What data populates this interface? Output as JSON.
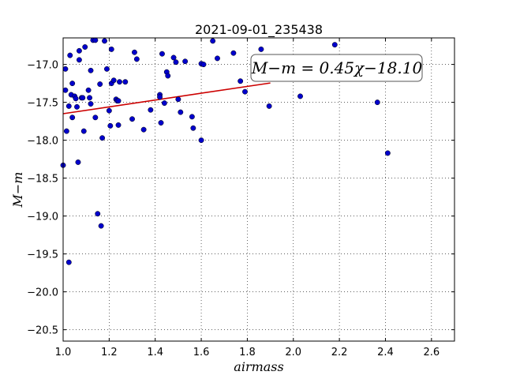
{
  "chart_data": {
    "type": "scatter",
    "title": "2021-09-01_235438",
    "xlabel": "airmass",
    "ylabel": "M−m",
    "xlim": [
      1.0,
      2.7
    ],
    "ylim": [
      -20.65,
      -16.65
    ],
    "x_ticks": [
      1.0,
      1.2,
      1.4,
      1.6,
      1.8,
      2.0,
      2.2,
      2.4,
      2.6
    ],
    "x_tick_labels": [
      "1.0",
      "1.2",
      "1.4",
      "1.6",
      "1.8",
      "2.0",
      "2.2",
      "2.4",
      "2.6"
    ],
    "y_ticks": [
      -17.0,
      -17.5,
      -18.0,
      -18.5,
      -19.0,
      -19.5,
      -20.0,
      -20.5
    ],
    "y_tick_labels": [
      "−17.0",
      "−17.5",
      "−18.0",
      "−18.5",
      "−19.0",
      "−19.5",
      "−20.0",
      "−20.5"
    ],
    "grid": true,
    "annotation": "M−m = 0.45χ−18.10",
    "fit": {
      "slope": 0.45,
      "intercept": -18.1,
      "x_range": [
        1.0,
        1.9
      ],
      "color": "#cc0000"
    },
    "point_color": "#0000cc",
    "points": [
      [
        1.0,
        -18.33
      ],
      [
        1.01,
        -17.34
      ],
      [
        1.01,
        -17.06
      ],
      [
        1.015,
        -17.88
      ],
      [
        1.025,
        -17.55
      ],
      [
        1.025,
        -19.61
      ],
      [
        1.03,
        -16.88
      ],
      [
        1.035,
        -17.4
      ],
      [
        1.04,
        -17.7
      ],
      [
        1.04,
        -17.25
      ],
      [
        1.05,
        -17.42
      ],
      [
        1.055,
        -17.45
      ],
      [
        1.06,
        -17.56
      ],
      [
        1.065,
        -18.29
      ],
      [
        1.07,
        -16.82
      ],
      [
        1.07,
        -16.94
      ],
      [
        1.08,
        -17.44
      ],
      [
        1.085,
        -17.44
      ],
      [
        1.09,
        -17.88
      ],
      [
        1.095,
        -16.77
      ],
      [
        1.11,
        -17.34
      ],
      [
        1.115,
        -17.44
      ],
      [
        1.12,
        -17.08
      ],
      [
        1.12,
        -17.52
      ],
      [
        1.13,
        -16.68
      ],
      [
        1.14,
        -16.68
      ],
      [
        1.14,
        -17.7
      ],
      [
        1.15,
        -18.97
      ],
      [
        1.16,
        -17.26
      ],
      [
        1.165,
        -19.13
      ],
      [
        1.17,
        -17.97
      ],
      [
        1.18,
        -16.69
      ],
      [
        1.19,
        -17.06
      ],
      [
        1.2,
        -17.61
      ],
      [
        1.205,
        -17.81
      ],
      [
        1.21,
        -16.8
      ],
      [
        1.21,
        -17.25
      ],
      [
        1.22,
        -17.21
      ],
      [
        1.23,
        -17.46
      ],
      [
        1.235,
        -17.48
      ],
      [
        1.24,
        -17.8
      ],
      [
        1.24,
        -17.48
      ],
      [
        1.245,
        -17.23
      ],
      [
        1.27,
        -17.23
      ],
      [
        1.3,
        -17.72
      ],
      [
        1.31,
        -16.84
      ],
      [
        1.32,
        -16.93
      ],
      [
        1.35,
        -17.86
      ],
      [
        1.38,
        -17.6
      ],
      [
        1.42,
        -17.4
      ],
      [
        1.42,
        -17.43
      ],
      [
        1.425,
        -17.77
      ],
      [
        1.43,
        -16.86
      ],
      [
        1.44,
        -17.51
      ],
      [
        1.45,
        -17.1
      ],
      [
        1.455,
        -17.15
      ],
      [
        1.48,
        -16.91
      ],
      [
        1.49,
        -16.97
      ],
      [
        1.5,
        -17.46
      ],
      [
        1.51,
        -17.63
      ],
      [
        1.53,
        -16.96
      ],
      [
        1.56,
        -17.69
      ],
      [
        1.565,
        -17.84
      ],
      [
        1.6,
        -16.99
      ],
      [
        1.6,
        -18.0
      ],
      [
        1.61,
        -17.0
      ],
      [
        1.65,
        -16.69
      ],
      [
        1.67,
        -16.92
      ],
      [
        1.74,
        -16.85
      ],
      [
        1.77,
        -17.22
      ],
      [
        1.79,
        -17.36
      ],
      [
        1.86,
        -16.8
      ],
      [
        1.895,
        -17.55
      ],
      [
        2.03,
        -17.42
      ],
      [
        2.18,
        -16.74
      ],
      [
        2.365,
        -17.5
      ],
      [
        2.41,
        -18.17
      ]
    ]
  }
}
